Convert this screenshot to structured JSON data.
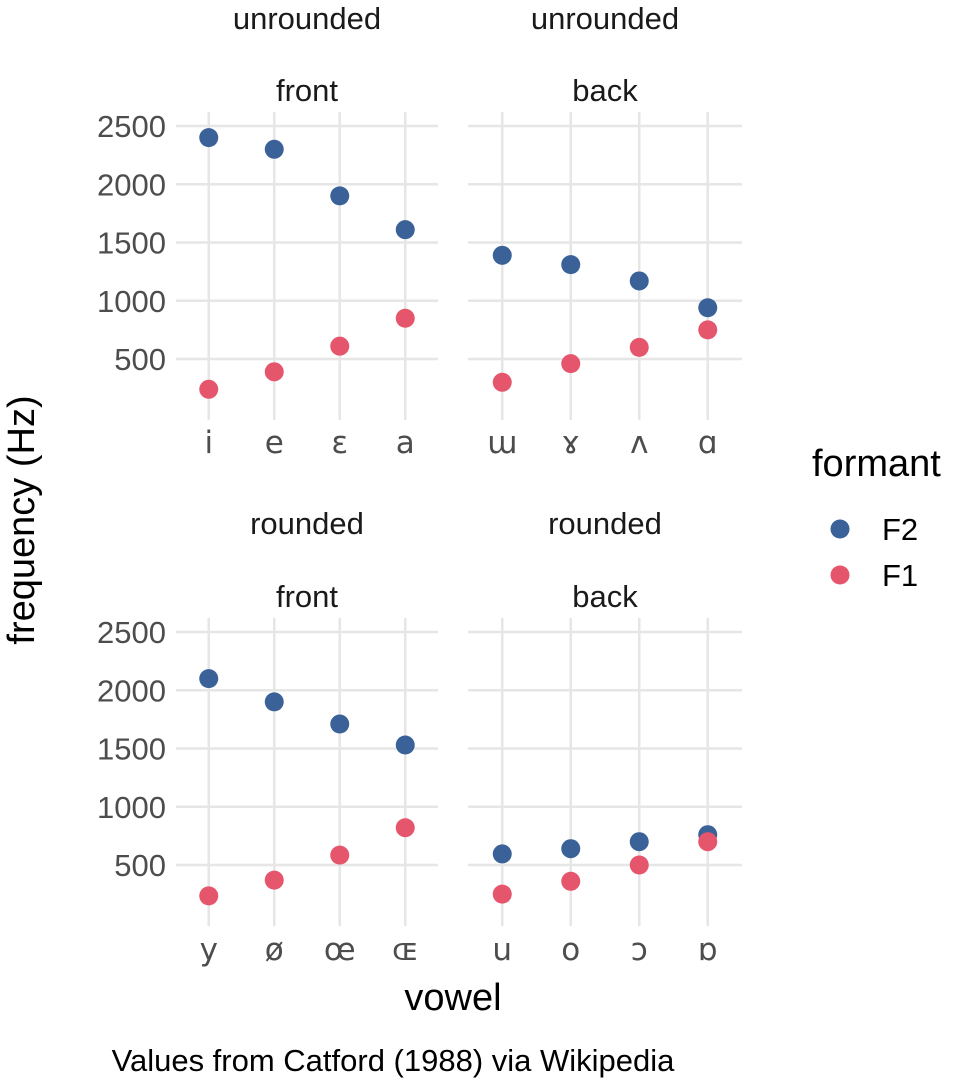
{
  "chart_data": {
    "type": "scatter",
    "facet_layout": "2x2",
    "xlabel": "vowel",
    "ylabel": "frequency (Hz)",
    "ylim": [
      100,
      2600
    ],
    "yticks": [
      500,
      1000,
      1500,
      2000,
      2500
    ],
    "grid": true,
    "caption": "Values from Catford (1988) via Wikipedia",
    "legend": {
      "title": "formant",
      "position": "right",
      "entries": [
        {
          "name": "F2",
          "color": "#3b6298"
        },
        {
          "name": "F1",
          "color": "#e5556c"
        }
      ]
    },
    "panels": [
      {
        "strip_top": "unrounded",
        "strip_bottom": "front",
        "categories": [
          "i",
          "e",
          "ɛ",
          "a"
        ],
        "series": [
          {
            "name": "F2",
            "values": [
              2400,
              2300,
              1900,
              1610
            ]
          },
          {
            "name": "F1",
            "values": [
              240,
              390,
              610,
              850
            ]
          }
        ]
      },
      {
        "strip_top": "unrounded",
        "strip_bottom": "back",
        "categories": [
          "ɯ",
          "ɤ",
          "ʌ",
          "ɑ"
        ],
        "series": [
          {
            "name": "F2",
            "values": [
              1390,
              1310,
              1170,
              940
            ]
          },
          {
            "name": "F1",
            "values": [
              300,
              460,
              600,
              750
            ]
          }
        ]
      },
      {
        "strip_top": "rounded",
        "strip_bottom": "front",
        "categories": [
          "y",
          "ø",
          "œ",
          "ɶ"
        ],
        "series": [
          {
            "name": "F2",
            "values": [
              2100,
              1900,
              1710,
              1530
            ]
          },
          {
            "name": "F1",
            "values": [
              235,
              370,
              585,
              820
            ]
          }
        ]
      },
      {
        "strip_top": "rounded",
        "strip_bottom": "back",
        "categories": [
          "u",
          "o",
          "ɔ",
          "ɒ"
        ],
        "series": [
          {
            "name": "F2",
            "values": [
              595,
              640,
              700,
              760
            ]
          },
          {
            "name": "F1",
            "values": [
              250,
              360,
              500,
              700
            ]
          }
        ]
      }
    ]
  }
}
